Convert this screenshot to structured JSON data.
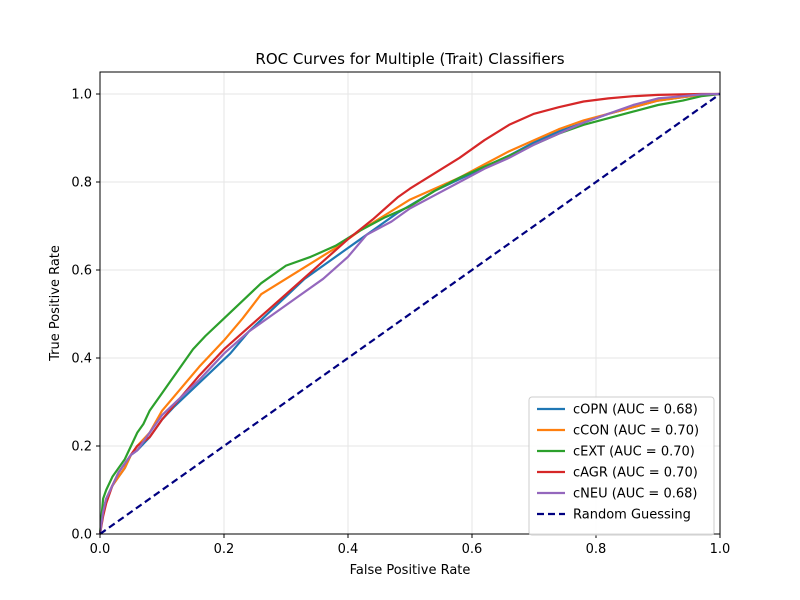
{
  "chart_data": {
    "type": "line",
    "title": "ROC Curves for Multiple (Trait) Classifiers",
    "xlabel": "False Positive Rate",
    "ylabel": "True Positive Rate",
    "xlim": [
      0.0,
      1.0
    ],
    "ylim": [
      0.0,
      1.05
    ],
    "xticks": [
      0.0,
      0.2,
      0.4,
      0.6,
      0.8,
      1.0
    ],
    "yticks": [
      0.0,
      0.2,
      0.4,
      0.6,
      0.8,
      1.0
    ],
    "xtick_labels": [
      "0.0",
      "0.2",
      "0.4",
      "0.6",
      "0.8",
      "1.0"
    ],
    "ytick_labels": [
      "0.0",
      "0.2",
      "0.4",
      "0.6",
      "0.8",
      "1.0"
    ],
    "grid": true,
    "legend_position": "lower-right",
    "series": [
      {
        "name": "cOPN (AUC = 0.68)",
        "color": "#1f77b4",
        "x": [
          0.0,
          0.005,
          0.01,
          0.02,
          0.03,
          0.04,
          0.05,
          0.06,
          0.08,
          0.1,
          0.12,
          0.15,
          0.18,
          0.21,
          0.24,
          0.27,
          0.3,
          0.33,
          0.36,
          0.39,
          0.42,
          0.45,
          0.48,
          0.51,
          0.54,
          0.57,
          0.6,
          0.63,
          0.66,
          0.7,
          0.74,
          0.78,
          0.82,
          0.86,
          0.9,
          0.94,
          0.97,
          1.0
        ],
        "y": [
          0.0,
          0.05,
          0.08,
          0.11,
          0.13,
          0.15,
          0.18,
          0.19,
          0.22,
          0.26,
          0.29,
          0.33,
          0.37,
          0.41,
          0.46,
          0.5,
          0.54,
          0.58,
          0.61,
          0.64,
          0.67,
          0.7,
          0.73,
          0.755,
          0.78,
          0.8,
          0.82,
          0.84,
          0.86,
          0.89,
          0.915,
          0.935,
          0.955,
          0.97,
          0.985,
          0.993,
          0.998,
          1.0
        ]
      },
      {
        "name": "cCON (AUC = 0.70)",
        "color": "#ff7f0e",
        "x": [
          0.0,
          0.005,
          0.01,
          0.02,
          0.03,
          0.04,
          0.05,
          0.06,
          0.08,
          0.1,
          0.13,
          0.16,
          0.2,
          0.23,
          0.26,
          0.3,
          0.34,
          0.38,
          0.42,
          0.46,
          0.5,
          0.54,
          0.58,
          0.62,
          0.66,
          0.7,
          0.74,
          0.78,
          0.82,
          0.86,
          0.9,
          0.94,
          0.97,
          1.0
        ],
        "y": [
          0.0,
          0.05,
          0.08,
          0.11,
          0.13,
          0.15,
          0.18,
          0.2,
          0.23,
          0.28,
          0.33,
          0.38,
          0.44,
          0.49,
          0.545,
          0.58,
          0.615,
          0.65,
          0.69,
          0.725,
          0.76,
          0.785,
          0.81,
          0.84,
          0.87,
          0.895,
          0.92,
          0.94,
          0.955,
          0.97,
          0.985,
          0.993,
          0.998,
          1.0
        ]
      },
      {
        "name": "cEXT (AUC = 0.70)",
        "color": "#2ca02c",
        "x": [
          0.0,
          0.005,
          0.01,
          0.02,
          0.03,
          0.04,
          0.05,
          0.06,
          0.07,
          0.08,
          0.1,
          0.12,
          0.15,
          0.17,
          0.2,
          0.23,
          0.26,
          0.3,
          0.34,
          0.38,
          0.42,
          0.46,
          0.5,
          0.54,
          0.58,
          0.62,
          0.66,
          0.7,
          0.74,
          0.78,
          0.82,
          0.86,
          0.9,
          0.94,
          0.97,
          1.0
        ],
        "y": [
          0.0,
          0.08,
          0.1,
          0.13,
          0.15,
          0.17,
          0.2,
          0.23,
          0.25,
          0.28,
          0.32,
          0.36,
          0.42,
          0.45,
          0.49,
          0.53,
          0.57,
          0.61,
          0.63,
          0.655,
          0.69,
          0.72,
          0.745,
          0.78,
          0.81,
          0.835,
          0.86,
          0.885,
          0.91,
          0.93,
          0.945,
          0.96,
          0.975,
          0.985,
          0.995,
          1.0
        ]
      },
      {
        "name": "cAGR (AUC = 0.70)",
        "color": "#d62728",
        "x": [
          0.0,
          0.005,
          0.01,
          0.02,
          0.03,
          0.04,
          0.05,
          0.06,
          0.08,
          0.1,
          0.13,
          0.16,
          0.2,
          0.24,
          0.28,
          0.32,
          0.36,
          0.4,
          0.44,
          0.48,
          0.5,
          0.54,
          0.58,
          0.62,
          0.66,
          0.7,
          0.74,
          0.78,
          0.82,
          0.86,
          0.9,
          0.94,
          0.97,
          1.0
        ],
        "y": [
          0.0,
          0.04,
          0.07,
          0.11,
          0.14,
          0.16,
          0.18,
          0.2,
          0.22,
          0.26,
          0.31,
          0.36,
          0.42,
          0.47,
          0.52,
          0.57,
          0.62,
          0.67,
          0.715,
          0.765,
          0.785,
          0.82,
          0.855,
          0.895,
          0.93,
          0.955,
          0.97,
          0.983,
          0.99,
          0.995,
          0.998,
          0.999,
          1.0,
          1.0
        ]
      },
      {
        "name": "cNEU (AUC = 0.68)",
        "color": "#9467bd",
        "x": [
          0.0,
          0.005,
          0.01,
          0.02,
          0.03,
          0.04,
          0.05,
          0.06,
          0.08,
          0.1,
          0.13,
          0.16,
          0.2,
          0.24,
          0.28,
          0.32,
          0.36,
          0.38,
          0.4,
          0.43,
          0.47,
          0.5,
          0.54,
          0.58,
          0.62,
          0.66,
          0.7,
          0.74,
          0.78,
          0.82,
          0.86,
          0.9,
          0.94,
          0.97,
          1.0
        ],
        "y": [
          0.0,
          0.05,
          0.08,
          0.11,
          0.14,
          0.16,
          0.18,
          0.19,
          0.23,
          0.27,
          0.31,
          0.35,
          0.41,
          0.46,
          0.5,
          0.54,
          0.58,
          0.605,
          0.63,
          0.68,
          0.71,
          0.74,
          0.77,
          0.8,
          0.83,
          0.855,
          0.885,
          0.91,
          0.935,
          0.955,
          0.975,
          0.99,
          0.995,
          0.999,
          1.0
        ]
      },
      {
        "name": "Random Guessing",
        "color": "#000080",
        "dashed": true,
        "x": [
          0.0,
          1.0
        ],
        "y": [
          0.0,
          1.0
        ]
      }
    ]
  }
}
